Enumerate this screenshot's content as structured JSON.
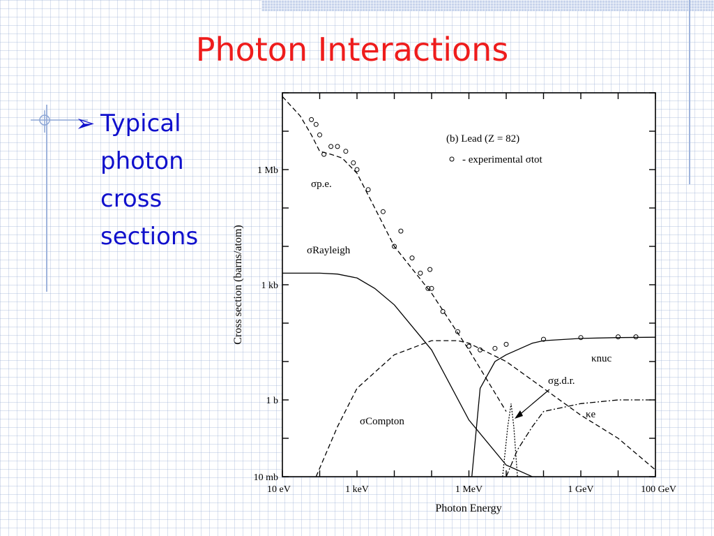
{
  "slide": {
    "title": "Photon Interactions",
    "bullet_lines": [
      "Typical",
      "photon",
      "cross",
      "sections"
    ]
  },
  "chart_data": {
    "type": "line",
    "panel_label": "(b) Lead (Z = 82)",
    "legend_entry": "- experimental σtot",
    "xlabel": "Photon Energy",
    "ylabel": "Cross section  (barns/atom)",
    "x_scale": "log",
    "y_scale": "log",
    "x_unit": "eV",
    "y_unit": "barns",
    "xlim": [
      10,
      100000000000
    ],
    "ylim": [
      0.01,
      100000000
    ],
    "x_ticks": [
      {
        "value": 10,
        "label": "10 eV"
      },
      {
        "value": 1000,
        "label": "1 keV"
      },
      {
        "value": 1000000,
        "label": "1 MeV"
      },
      {
        "value": 1000000000,
        "label": "1 GeV"
      },
      {
        "value": 100000000000,
        "label": "100 GeV"
      }
    ],
    "y_ticks": [
      {
        "value": 1000000,
        "label": "1 Mb"
      },
      {
        "value": 1000,
        "label": "1 kb"
      },
      {
        "value": 1,
        "label": "1 b"
      },
      {
        "value": 0.01,
        "label": "10 mb"
      }
    ],
    "series": [
      {
        "name": "σp.e.",
        "style": "dashed",
        "x": [
          10,
          30,
          60,
          100,
          200,
          400,
          1000,
          3000,
          10000,
          100000,
          1000000,
          10000000
        ],
        "y": [
          80000000,
          25000000,
          8000000,
          3000000,
          2500000,
          2000000,
          800000,
          100000,
          10000,
          600,
          20,
          0.5
        ]
      },
      {
        "name": "σRayleigh",
        "style": "solid",
        "x": [
          10,
          100,
          300,
          1000,
          3000,
          10000,
          100000,
          1000000,
          10000000,
          50000000
        ],
        "y": [
          2000,
          2000,
          1900,
          1500,
          800,
          300,
          20,
          0.3,
          0.02,
          0.001
        ]
      },
      {
        "name": "σCompton",
        "style": "dashed",
        "x": [
          80,
          300,
          1000,
          10000,
          100000,
          500000,
          1000000,
          10000000,
          100000000,
          1000000000,
          10000000000,
          100000000000
        ],
        "y": [
          0.01,
          0.2,
          2,
          15,
          35,
          35,
          30,
          10,
          2,
          0.4,
          0.1,
          0.015
        ]
      },
      {
        "name": "κnuc",
        "style": "solid",
        "x": [
          1200000,
          2000000,
          5000000,
          10000000,
          50000000,
          100000000,
          1000000000,
          10000000000,
          100000000000
        ],
        "y": [
          0.01,
          2,
          10,
          15,
          30,
          35,
          40,
          42,
          43
        ]
      },
      {
        "name": "κe",
        "style": "dash-dot",
        "x": [
          10000000,
          20000000,
          50000000,
          100000000,
          1000000000,
          10000000000,
          100000000000
        ],
        "y": [
          0.01,
          0.05,
          0.2,
          0.5,
          0.8,
          1,
          1
        ]
      },
      {
        "name": "σg.d.r.",
        "style": "dotted",
        "x": [
          8000000,
          11000000,
          13500000,
          16000000,
          20000000
        ],
        "y": [
          0.01,
          0.2,
          0.8,
          0.2,
          0.01
        ]
      },
      {
        "name": "experimental σtot",
        "style": "markers",
        "x": [
          60,
          80,
          100,
          130,
          200,
          300,
          500,
          800,
          1000,
          2000,
          5000,
          10000,
          15000,
          30000,
          50000,
          80000,
          90000,
          100000,
          200000,
          500000,
          1000000,
          2000000,
          5000000,
          10000000,
          100000000,
          1000000000,
          10000000000,
          30000000000
        ],
        "y": [
          20000000,
          15000000,
          8000000,
          2500000,
          4000000,
          4000000,
          3000000,
          1500000,
          1000000,
          300000,
          80000,
          10000,
          25000,
          5000,
          2000,
          800,
          2500,
          800,
          200,
          60,
          25,
          20,
          22,
          28,
          38,
          42,
          44,
          44
        ]
      }
    ],
    "annotations": [
      {
        "text": "σp.e."
      },
      {
        "text": "σRayleigh"
      },
      {
        "text": "σCompton"
      },
      {
        "text": "κnuc"
      },
      {
        "text": "σg.d.r."
      },
      {
        "text": "κe"
      }
    ]
  }
}
